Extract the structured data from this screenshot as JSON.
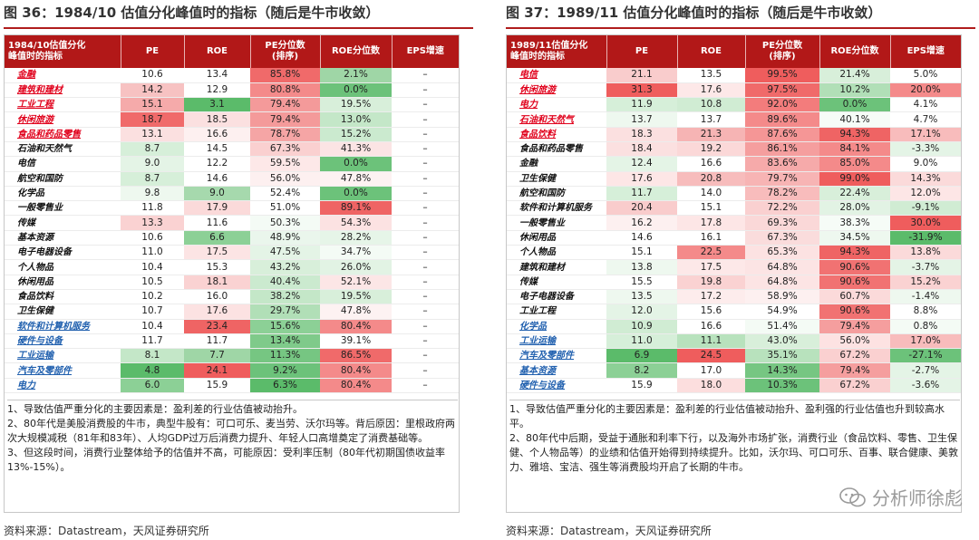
{
  "left": {
    "title": "图 36：1984/10 估值分化峰值时的指标（随后是牛市收敛）",
    "headers": [
      "1984/10估值分化\n峰值时的指标",
      "PE",
      "ROE",
      "PE分位数\n(排序)",
      "ROE分位数",
      "EPS增速"
    ],
    "rows": [
      {
        "name": "金融",
        "c": "red",
        "ul": true,
        "pe": "10.6",
        "roe": "13.4",
        "pep": "85.8%",
        "roep": "2.1%",
        "eps": "–",
        "bg": [
          "#ffffff",
          "#ffffff",
          "#f06a6a",
          "#9fd6a6",
          "#ffffff"
        ]
      },
      {
        "name": "建筑和建材",
        "c": "red",
        "ul": true,
        "pe": "14.2",
        "roe": "12.9",
        "pep": "80.8%",
        "roep": "0.0%",
        "eps": "–",
        "bg": [
          "#f7c2c2",
          "#ffffff",
          "#f48a8a",
          "#6cc27a",
          "#ffffff"
        ]
      },
      {
        "name": "工业工程",
        "c": "red",
        "ul": true,
        "pe": "15.1",
        "roe": "3.1",
        "pep": "79.4%",
        "roep": "19.5%",
        "eps": "–",
        "bg": [
          "#f5aaaa",
          "#5bbb6a",
          "#f49a9a",
          "#d8efda",
          "#ffffff"
        ]
      },
      {
        "name": "休闲旅游",
        "c": "red",
        "ul": true,
        "pe": "18.7",
        "roe": "18.5",
        "pep": "79.4%",
        "roep": "13.0%",
        "eps": "–",
        "bg": [
          "#f06a6a",
          "#fbe0e0",
          "#f49a9a",
          "#c4e7c8",
          "#ffffff"
        ]
      },
      {
        "name": "食品和药品零售",
        "c": "red",
        "ul": true,
        "pe": "13.1",
        "roe": "16.6",
        "pep": "78.7%",
        "roep": "15.2%",
        "eps": "–",
        "bg": [
          "#fbe0e0",
          "#fdf0f0",
          "#f5a5a5",
          "#cbeacf",
          "#ffffff"
        ]
      },
      {
        "name": "石油和天然气",
        "c": "black",
        "ul": false,
        "pe": "8.7",
        "roe": "14.5",
        "pep": "67.3%",
        "roep": "41.3%",
        "eps": "–",
        "bg": [
          "#d6efd9",
          "#ffffff",
          "#fad0d0",
          "#fbe4e4",
          "#ffffff"
        ]
      },
      {
        "name": "电信",
        "c": "black",
        "ul": false,
        "pe": "9.0",
        "roe": "12.2",
        "pep": "59.5%",
        "roep": "0.0%",
        "eps": "–",
        "bg": [
          "#e4f4e6",
          "#ffffff",
          "#fde8e8",
          "#6cc27a",
          "#ffffff"
        ]
      },
      {
        "name": "航空和国防",
        "c": "black",
        "ul": false,
        "pe": "8.7",
        "roe": "14.6",
        "pep": "56.0%",
        "roep": "47.8%",
        "eps": "–",
        "bg": [
          "#d6efd9",
          "#ffffff",
          "#fdf0f0",
          "#fdf2f2",
          "#ffffff"
        ]
      },
      {
        "name": "化学品",
        "c": "black",
        "ul": false,
        "pe": "9.8",
        "roe": "9.0",
        "pep": "52.4%",
        "roep": "0.0%",
        "eps": "–",
        "bg": [
          "#eef8ef",
          "#a6d9ad",
          "#ffffff",
          "#6cc27a",
          "#ffffff"
        ]
      },
      {
        "name": "一般零售业",
        "c": "black",
        "ul": false,
        "pe": "11.8",
        "roe": "17.9",
        "pep": "51.0%",
        "roep": "89.1%",
        "eps": "–",
        "bg": [
          "#ffffff",
          "#fbdada",
          "#ffffff",
          "#ef6464",
          "#ffffff"
        ]
      },
      {
        "name": "传媒",
        "c": "black",
        "ul": false,
        "pe": "13.3",
        "roe": "11.6",
        "pep": "50.3%",
        "roep": "54.3%",
        "eps": "–",
        "bg": [
          "#fad2d2",
          "#ffffff",
          "#f4fbf5",
          "#fce2e2",
          "#ffffff"
        ]
      },
      {
        "name": "基本资源",
        "c": "black",
        "ul": false,
        "pe": "10.6",
        "roe": "6.6",
        "pep": "48.9%",
        "roep": "28.2%",
        "eps": "–",
        "bg": [
          "#ffffff",
          "#8cd096",
          "#eaf6ec",
          "#e6f5e8",
          "#ffffff"
        ]
      },
      {
        "name": "电子电器设备",
        "c": "black",
        "ul": false,
        "pe": "11.0",
        "roe": "17.5",
        "pep": "47.5%",
        "roep": "34.7%",
        "eps": "–",
        "bg": [
          "#ffffff",
          "#fce4e4",
          "#e4f4e6",
          "#f4fbf5",
          "#ffffff"
        ]
      },
      {
        "name": "个人物品",
        "c": "black",
        "ul": false,
        "pe": "10.4",
        "roe": "15.3",
        "pep": "43.2%",
        "roep": "26.0%",
        "eps": "–",
        "bg": [
          "#ffffff",
          "#ffffff",
          "#d8efda",
          "#e2f3e4",
          "#ffffff"
        ]
      },
      {
        "name": "休闲用品",
        "c": "black",
        "ul": false,
        "pe": "10.5",
        "roe": "18.1",
        "pep": "40.4%",
        "roep": "52.1%",
        "eps": "–",
        "bg": [
          "#ffffff",
          "#fad2d2",
          "#cbeacf",
          "#fce6e6",
          "#ffffff"
        ]
      },
      {
        "name": "食品饮料",
        "c": "black",
        "ul": false,
        "pe": "10.2",
        "roe": "16.0",
        "pep": "38.2%",
        "roep": "19.5%",
        "eps": "–",
        "bg": [
          "#ffffff",
          "#ffffff",
          "#c4e7c8",
          "#d8efda",
          "#ffffff"
        ]
      },
      {
        "name": "卫生保健",
        "c": "black",
        "ul": false,
        "pe": "10.7",
        "roe": "17.6",
        "pep": "29.7%",
        "roep": "47.8%",
        "eps": "–",
        "bg": [
          "#ffffff",
          "#fce2e2",
          "#b1dfb7",
          "#fdf2f2",
          "#ffffff"
        ]
      },
      {
        "name": "软件和计算机服务",
        "c": "blue",
        "ul": true,
        "pe": "10.4",
        "roe": "23.4",
        "pep": "15.6%",
        "roep": "80.4%",
        "eps": "–",
        "bg": [
          "#ffffff",
          "#ef6464",
          "#8cd096",
          "#f48a8a",
          "#ffffff"
        ]
      },
      {
        "name": "硬件与设备",
        "c": "blue",
        "ul": true,
        "pe": "11.7",
        "roe": "11.7",
        "pep": "13.4%",
        "roep": "39.1%",
        "eps": "–",
        "bg": [
          "#ffffff",
          "#ffffff",
          "#7fca8a",
          "#ffffff",
          "#ffffff"
        ]
      },
      {
        "name": "工业运输",
        "c": "blue",
        "ul": true,
        "pe": "8.1",
        "roe": "7.7",
        "pep": "11.3%",
        "roep": "86.5%",
        "eps": "–",
        "bg": [
          "#c4e7c8",
          "#9fd6a6",
          "#76c682",
          "#f06a6a",
          "#ffffff"
        ]
      },
      {
        "name": "汽车及零部件",
        "c": "blue",
        "ul": true,
        "pe": "4.8",
        "roe": "24.1",
        "pep": "9.2%",
        "roep": "80.4%",
        "eps": "–",
        "bg": [
          "#5bbb6a",
          "#ef5d5d",
          "#6cc27a",
          "#f48a8a",
          "#ffffff"
        ]
      },
      {
        "name": "电力",
        "c": "blue",
        "ul": true,
        "pe": "6.0",
        "roe": "15.9",
        "pep": "6.3%",
        "roep": "80.4%",
        "eps": "–",
        "bg": [
          "#8cd096",
          "#ffffff",
          "#5bbb6a",
          "#f48a8a",
          "#ffffff"
        ]
      }
    ],
    "notes": [
      "1、导致估值严重分化的主要因素是：盈利差的行业估值被动抬升。",
      "2、80年代是美股消费股的牛市，典型牛股有：可口可乐、麦当劳、沃尔玛等。背后原因：里根政府两次大规模减税（81年和83年）、人均GDP过万后消费力提升、年轻人口高增奠定了消费基础等。",
      "3、但这段时间，消费行业整体给予的估值并不高，可能原因：受利率压制（80年代初期国债收益率13%-15%）。"
    ],
    "source": "资料来源：Datastream，天风证券研究所"
  },
  "right": {
    "title": "图 37：1989/11 估值分化峰值时的指标（随后是牛市收敛）",
    "headers": [
      "1989/11估值分化\n峰值时的指标",
      "PE",
      "ROE",
      "PE分位数\n(排序)",
      "ROE分位数",
      "EPS增速"
    ],
    "rows": [
      {
        "name": "电信",
        "c": "red",
        "ul": true,
        "pe": "21.1",
        "roe": "13.5",
        "pep": "99.5%",
        "roep": "21.4%",
        "eps": "5.0%",
        "bg": [
          "#f9cccc",
          "#ffffff",
          "#ef5d5d",
          "#d8efda",
          "#ffffff"
        ]
      },
      {
        "name": "休闲旅游",
        "c": "red",
        "ul": true,
        "pe": "31.3",
        "roe": "17.6",
        "pep": "97.5%",
        "roep": "10.2%",
        "eps": "20.0%",
        "bg": [
          "#ef5d5d",
          "#fde8e8",
          "#f06a6a",
          "#b1dfb7",
          "#f48a8a"
        ]
      },
      {
        "name": "电力",
        "c": "red",
        "ul": true,
        "pe": "11.9",
        "roe": "10.8",
        "pep": "92.0%",
        "roep": "0.0%",
        "eps": "4.1%",
        "bg": [
          "#d6efd9",
          "#d0ecd3",
          "#f37c7c",
          "#6cc27a",
          "#ffffff"
        ]
      },
      {
        "name": "石油和天然气",
        "c": "red",
        "ul": true,
        "pe": "13.7",
        "roe": "13.7",
        "pep": "89.6%",
        "roep": "40.1%",
        "eps": "4.7%",
        "bg": [
          "#eef8ef",
          "#ffffff",
          "#f48a8a",
          "#f6fcf7",
          "#ffffff"
        ]
      },
      {
        "name": "食品饮料",
        "c": "red",
        "ul": true,
        "pe": "18.3",
        "roe": "21.3",
        "pep": "87.6%",
        "roep": "94.3%",
        "eps": "17.1%",
        "bg": [
          "#fbe0e0",
          "#f6b4b4",
          "#f59696",
          "#ef6464",
          "#f8bcbc"
        ]
      },
      {
        "name": "食品和药品零售",
        "c": "black",
        "ul": false,
        "pe": "18.4",
        "roe": "19.2",
        "pep": "86.1%",
        "roep": "84.1%",
        "eps": "-3.3%",
        "bg": [
          "#fbe0e0",
          "#fbd8d8",
          "#f59e9e",
          "#f48a8a",
          "#e4f4e6"
        ]
      },
      {
        "name": "金融",
        "c": "black",
        "ul": false,
        "pe": "12.4",
        "roe": "16.6",
        "pep": "83.6%",
        "roep": "85.0%",
        "eps": "9.0%",
        "bg": [
          "#e4f4e6",
          "#ffffff",
          "#f6aaaa",
          "#f48a8a",
          "#ffffff"
        ]
      },
      {
        "name": "卫生保健",
        "c": "black",
        "ul": false,
        "pe": "17.6",
        "roe": "20.8",
        "pep": "79.7%",
        "roep": "99.0%",
        "eps": "14.3%",
        "bg": [
          "#fde6e6",
          "#f7bcbc",
          "#f7b4b4",
          "#ef5d5d",
          "#fbdada"
        ]
      },
      {
        "name": "航空和国防",
        "c": "black",
        "ul": false,
        "pe": "11.7",
        "roe": "14.0",
        "pep": "78.2%",
        "roep": "22.4%",
        "eps": "12.0%",
        "bg": [
          "#d6efd9",
          "#ffffff",
          "#f8bcbc",
          "#d8efda",
          "#fde6e6"
        ]
      },
      {
        "name": "软件和计算机服务",
        "c": "black",
        "ul": false,
        "pe": "20.4",
        "roe": "15.1",
        "pep": "72.2%",
        "roep": "28.0%",
        "eps": "-9.1%",
        "bg": [
          "#f9cccc",
          "#ffffff",
          "#fad0d0",
          "#e2f3e4",
          "#d0ecd3"
        ]
      },
      {
        "name": "一般零售业",
        "c": "black",
        "ul": false,
        "pe": "16.2",
        "roe": "17.8",
        "pep": "69.3%",
        "roep": "38.3%",
        "eps": "30.0%",
        "bg": [
          "#fdf0f0",
          "#fde6e6",
          "#fad8d8",
          "#f6fcf7",
          "#ef5d5d"
        ]
      },
      {
        "name": "休闲用品",
        "c": "black",
        "ul": false,
        "pe": "14.6",
        "roe": "16.1",
        "pep": "67.3%",
        "roep": "34.5%",
        "eps": "-31.9%",
        "bg": [
          "#ffffff",
          "#ffffff",
          "#fadcdc",
          "#eef8ef",
          "#5bbb6a"
        ]
      },
      {
        "name": "个人物品",
        "c": "black",
        "ul": false,
        "pe": "15.1",
        "roe": "22.5",
        "pep": "65.3%",
        "roep": "94.3%",
        "eps": "13.8%",
        "bg": [
          "#ffffff",
          "#f48a8a",
          "#fce2e2",
          "#ef6464",
          "#fbdada"
        ]
      },
      {
        "name": "建筑和建材",
        "c": "black",
        "ul": false,
        "pe": "13.8",
        "roe": "17.5",
        "pep": "64.8%",
        "roep": "90.6%",
        "eps": "-3.7%",
        "bg": [
          "#eef8ef",
          "#fde8e8",
          "#fce4e4",
          "#f17272",
          "#e4f4e6"
        ]
      },
      {
        "name": "传媒",
        "c": "black",
        "ul": false,
        "pe": "15.5",
        "roe": "19.8",
        "pep": "64.8%",
        "roep": "90.6%",
        "eps": "15.2%",
        "bg": [
          "#ffffff",
          "#fad2d2",
          "#fce4e4",
          "#f17272",
          "#fad2d2"
        ]
      },
      {
        "name": "电子电器设备",
        "c": "black",
        "ul": false,
        "pe": "13.5",
        "roe": "17.2",
        "pep": "58.9%",
        "roep": "60.7%",
        "eps": "-1.4%",
        "bg": [
          "#eef8ef",
          "#fdecec",
          "#fdf0f0",
          "#fbdada",
          "#eef8ef"
        ]
      },
      {
        "name": "工业工程",
        "c": "black",
        "ul": false,
        "pe": "12.0",
        "roe": "15.6",
        "pep": "54.9%",
        "roep": "90.6%",
        "eps": "8.8%",
        "bg": [
          "#e4f4e6",
          "#ffffff",
          "#ffffff",
          "#f17272",
          "#ffffff"
        ]
      },
      {
        "name": "化学品",
        "c": "blue",
        "ul": true,
        "pe": "10.9",
        "roe": "16.6",
        "pep": "51.4%",
        "roep": "79.4%",
        "eps": "0.8%",
        "bg": [
          "#d0ecd3",
          "#ffffff",
          "#f4fbf5",
          "#f59e9e",
          "#f4fbf5"
        ]
      },
      {
        "name": "工业运输",
        "c": "blue",
        "ul": true,
        "pe": "11.0",
        "roe": "11.1",
        "pep": "43.0%",
        "roep": "56.0%",
        "eps": "17.0%",
        "bg": [
          "#d6efd9",
          "#b8e2bd",
          "#d8efda",
          "#fde2e2",
          "#f8bcbc"
        ]
      },
      {
        "name": "汽车及零部件",
        "c": "blue",
        "ul": true,
        "pe": "6.9",
        "roe": "24.5",
        "pep": "35.1%",
        "roep": "67.2%",
        "eps": "-27.1%",
        "bg": [
          "#5bbb6a",
          "#ef5d5d",
          "#b8e2bd",
          "#fad0d0",
          "#6cc27a"
        ]
      },
      {
        "name": "基本资源",
        "c": "blue",
        "ul": true,
        "pe": "8.2",
        "roe": "17.0",
        "pep": "14.3%",
        "roep": "79.4%",
        "eps": "-2.7%",
        "bg": [
          "#8cd096",
          "#ffffff",
          "#76c682",
          "#f59e9e",
          "#e4f4e6"
        ]
      },
      {
        "name": "硬件与设备",
        "c": "blue",
        "ul": true,
        "pe": "15.9",
        "roe": "18.0",
        "pep": "10.3%",
        "roep": "67.2%",
        "eps": "-3.6%",
        "bg": [
          "#ffffff",
          "#fcdede",
          "#6cc27a",
          "#fad0d0",
          "#e4f4e6"
        ]
      }
    ],
    "notes": [
      "1、导致估值严重分化的主要因素是：盈利差的行业估值被动抬升、盈利强的行业估值也升到较高水平。",
      "2、80年代中后期，受益于通胀和利率下行，以及海外市场扩张，消费行业（食品饮料、零售、卫生保健、个人物品等）的业绩和估值开始得到持续提升。比如，沃尔玛、可口可乐、百事、联合健康、美敦力、雅培、宝洁、强生等消费股均开启了长期的牛市。"
    ],
    "source": "资料来源：Datastream，天风证券研究所"
  },
  "watermark": "分析师徐彪"
}
